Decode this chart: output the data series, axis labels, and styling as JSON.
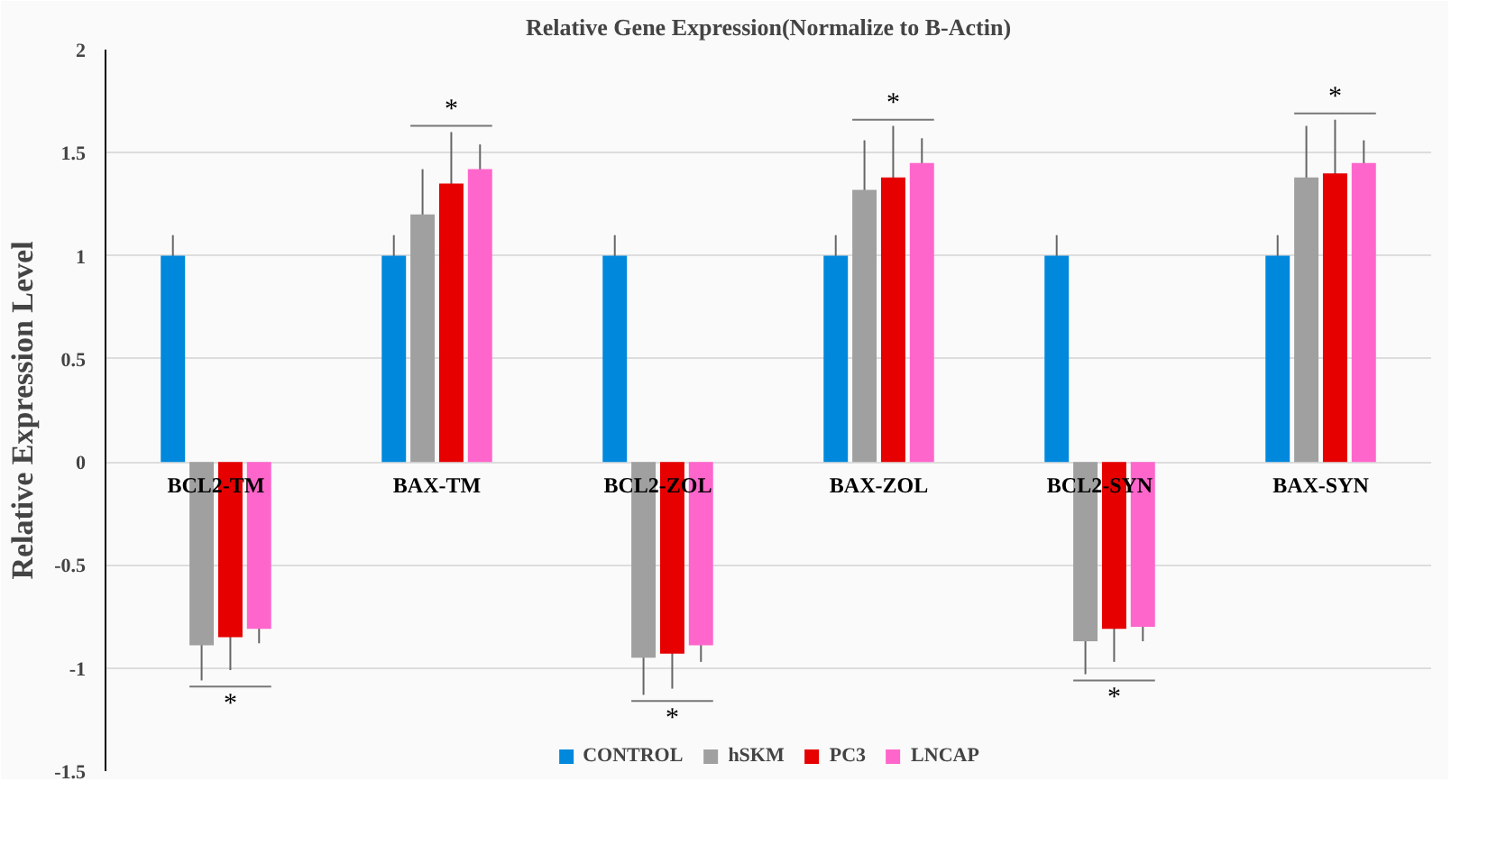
{
  "chart_data": {
    "type": "bar",
    "title": "Relative Gene Expression(Normalize to B-Actin)",
    "ylabel": "Relative Expression Level",
    "categories": [
      "BCL2-TM",
      "BAX-TM",
      "BCL2-ZOL",
      "BAX-ZOL",
      "BCL2-SYN",
      "BAX-SYN"
    ],
    "series": [
      {
        "name": "CONTROL",
        "color": "#0088dd",
        "values": [
          1,
          1,
          1,
          1,
          1,
          1
        ],
        "errors": [
          0.1,
          0.1,
          0.1,
          0.1,
          0.1,
          0.1
        ]
      },
      {
        "name": "hSKM",
        "color": "#a0a0a0",
        "values": [
          -0.89,
          1.2,
          -0.95,
          1.32,
          -0.87,
          1.38
        ],
        "errors": [
          0.17,
          0.22,
          0.18,
          0.24,
          0.16,
          0.25
        ]
      },
      {
        "name": "PC3",
        "color": "#e60000",
        "values": [
          -0.85,
          1.35,
          -0.93,
          1.38,
          -0.81,
          1.4
        ],
        "errors": [
          0.16,
          0.25,
          0.17,
          0.25,
          0.16,
          0.26
        ]
      },
      {
        "name": "LNCAP",
        "color": "#ff66cc",
        "values": [
          -0.81,
          1.42,
          -0.89,
          1.45,
          -0.8,
          1.45
        ],
        "errors": [
          0.07,
          0.12,
          0.08,
          0.12,
          0.07,
          0.11
        ]
      }
    ],
    "ylim": [
      -1.5,
      2
    ],
    "yticks": [
      -1.5,
      -1,
      -0.5,
      0,
      0.5,
      1,
      1.5,
      2
    ],
    "grid": "y",
    "legend": "bottom",
    "annotations": [
      "*",
      "*",
      "*",
      "*",
      "*",
      "*"
    ]
  }
}
